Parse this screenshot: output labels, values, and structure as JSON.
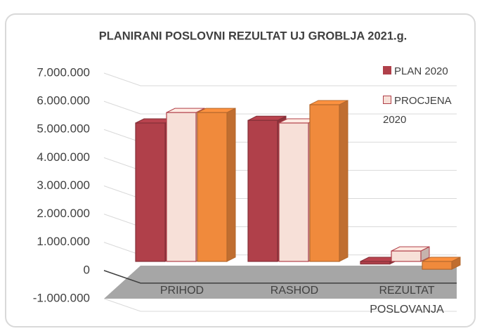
{
  "chart_data": {
    "type": "bar3d",
    "title": "PLANIRANI POSLOVNI REZULTAT UJ GROBLJA 2021.g.",
    "categories": [
      "PRIHOD",
      "RASHOD",
      "REZULTAT POSLOVANJA"
    ],
    "series": [
      {
        "name": "PLAN 2020",
        "color": "#b0404a",
        "values": [
          5300000,
          5400000,
          -100000
        ]
      },
      {
        "name": "PROCJENA 2020",
        "color": "#f7e0d8",
        "values": [
          5700000,
          5300000,
          400000
        ]
      },
      {
        "color": "#f08a3c",
        "values": [
          5700000,
          6000000,
          -300000
        ]
      }
    ],
    "ylim": [
      -1000000,
      7000000
    ],
    "yticks": [
      {
        "value": -1000000,
        "label": "-1.000.000"
      },
      0,
      {
        "value": 1000000,
        "label": "1.000.000"
      },
      {
        "value": 2000000,
        "label": "2.000.000"
      },
      {
        "value": 3000000,
        "label": "3.000.000"
      },
      {
        "value": 4000000,
        "label": "4.000.000"
      },
      {
        "value": 5000000,
        "label": "5.000.000"
      },
      {
        "value": 6000000,
        "label": "6.000.000"
      },
      {
        "value": 7000000,
        "label": "7.000.000"
      }
    ],
    "grid": true
  }
}
